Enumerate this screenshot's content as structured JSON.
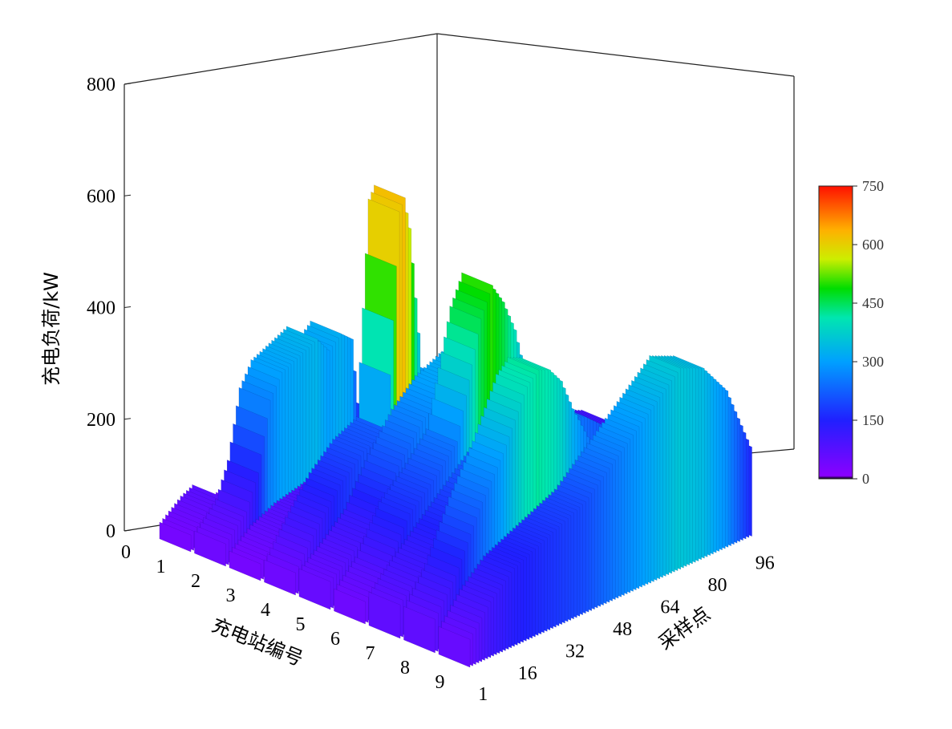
{
  "chart_data": {
    "type": "3d-bar",
    "zlabel": "充电负荷/kW",
    "xlabel": "充电站编号",
    "ylabel": "采样点",
    "z_ticks": [
      "0",
      "200",
      "400",
      "600",
      "800"
    ],
    "zlim": [
      0,
      800
    ],
    "x_ticks": [
      "0",
      "1",
      "2",
      "3",
      "4",
      "5",
      "6",
      "7",
      "8",
      "9"
    ],
    "y_ticks": [
      "1",
      "16",
      "32",
      "48",
      "64",
      "80",
      "96"
    ],
    "ylim": [
      1,
      96
    ],
    "colorbar": {
      "ticks": [
        "0",
        "150",
        "300",
        "450",
        "600",
        "750"
      ],
      "range": [
        0,
        750
      ]
    },
    "series": [
      {
        "station": 1,
        "points": [
          [
            1,
            30
          ],
          [
            8,
            60
          ],
          [
            12,
            70
          ],
          [
            16,
            40
          ],
          [
            18,
            35
          ],
          [
            24,
            40
          ],
          [
            28,
            30
          ],
          [
            32,
            35
          ],
          [
            40,
            25
          ],
          [
            48,
            20
          ],
          [
            56,
            30
          ],
          [
            64,
            20
          ],
          [
            72,
            25
          ],
          [
            80,
            30
          ],
          [
            88,
            20
          ],
          [
            96,
            15
          ]
        ]
      },
      {
        "station": 2,
        "points": [
          [
            1,
            40
          ],
          [
            8,
            80
          ],
          [
            12,
            140
          ],
          [
            16,
            260
          ],
          [
            20,
            300
          ],
          [
            24,
            310
          ],
          [
            28,
            320
          ],
          [
            32,
            330
          ],
          [
            36,
            300
          ],
          [
            40,
            320
          ],
          [
            44,
            300
          ],
          [
            48,
            60
          ],
          [
            56,
            30
          ],
          [
            64,
            40
          ],
          [
            72,
            30
          ],
          [
            80,
            40
          ],
          [
            88,
            30
          ],
          [
            96,
            30
          ]
        ]
      },
      {
        "station": 3,
        "points": [
          [
            1,
            30
          ],
          [
            8,
            60
          ],
          [
            16,
            80
          ],
          [
            24,
            90
          ],
          [
            32,
            100
          ],
          [
            40,
            80
          ],
          [
            48,
            60
          ],
          [
            56,
            50
          ],
          [
            64,
            70
          ],
          [
            72,
            80
          ],
          [
            80,
            90
          ],
          [
            88,
            60
          ],
          [
            96,
            40
          ]
        ]
      },
      {
        "station": 4,
        "points": [
          [
            1,
            40
          ],
          [
            8,
            100
          ],
          [
            16,
            160
          ],
          [
            24,
            200
          ],
          [
            32,
            220
          ],
          [
            36,
            600
          ],
          [
            38,
            620
          ],
          [
            40,
            560
          ],
          [
            44,
            300
          ],
          [
            48,
            280
          ],
          [
            56,
            200
          ],
          [
            64,
            180
          ],
          [
            72,
            160
          ],
          [
            80,
            140
          ],
          [
            88,
            120
          ],
          [
            96,
            80
          ]
        ]
      },
      {
        "station": 5,
        "points": [
          [
            1,
            50
          ],
          [
            8,
            80
          ],
          [
            16,
            120
          ],
          [
            24,
            200
          ],
          [
            32,
            260
          ],
          [
            40,
            300
          ],
          [
            48,
            320
          ],
          [
            56,
            330
          ],
          [
            64,
            280
          ],
          [
            72,
            220
          ],
          [
            80,
            160
          ],
          [
            88,
            120
          ],
          [
            96,
            100
          ]
        ]
      },
      {
        "station": 6,
        "points": [
          [
            1,
            40
          ],
          [
            8,
            80
          ],
          [
            16,
            160
          ],
          [
            24,
            200
          ],
          [
            32,
            250
          ],
          [
            40,
            450
          ],
          [
            44,
            500
          ],
          [
            48,
            460
          ],
          [
            52,
            400
          ],
          [
            56,
            300
          ],
          [
            64,
            220
          ],
          [
            72,
            180
          ],
          [
            80,
            160
          ],
          [
            88,
            120
          ],
          [
            96,
            80
          ]
        ]
      },
      {
        "station": 7,
        "points": [
          [
            1,
            60
          ],
          [
            8,
            100
          ],
          [
            16,
            140
          ],
          [
            24,
            180
          ],
          [
            32,
            220
          ],
          [
            40,
            260
          ],
          [
            48,
            280
          ],
          [
            56,
            260
          ],
          [
            64,
            240
          ],
          [
            72,
            200
          ],
          [
            80,
            160
          ],
          [
            88,
            120
          ],
          [
            96,
            90
          ]
        ]
      },
      {
        "station": 8,
        "points": [
          [
            1,
            60
          ],
          [
            8,
            120
          ],
          [
            16,
            220
          ],
          [
            24,
            300
          ],
          [
            32,
            400
          ],
          [
            36,
            420
          ],
          [
            40,
            410
          ],
          [
            44,
            380
          ],
          [
            48,
            320
          ],
          [
            56,
            220
          ],
          [
            64,
            180
          ],
          [
            72,
            160
          ],
          [
            80,
            150
          ],
          [
            88,
            140
          ],
          [
            96,
            110
          ]
        ]
      },
      {
        "station": 9,
        "points": [
          [
            1,
            50
          ],
          [
            8,
            100
          ],
          [
            16,
            140
          ],
          [
            24,
            160
          ],
          [
            32,
            180
          ],
          [
            40,
            200
          ],
          [
            48,
            240
          ],
          [
            56,
            280
          ],
          [
            64,
            320
          ],
          [
            72,
            360
          ],
          [
            80,
            340
          ],
          [
            88,
            280
          ],
          [
            96,
            160
          ]
        ]
      }
    ]
  }
}
